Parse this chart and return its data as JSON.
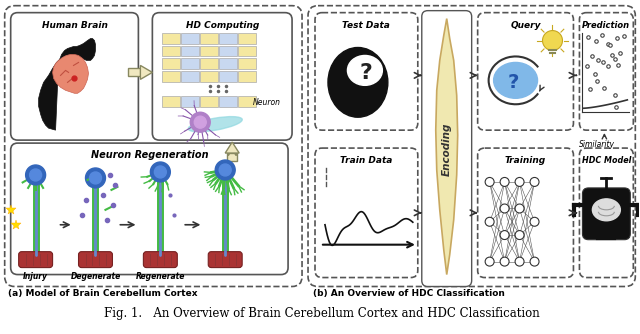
{
  "title": "Fig. 1.   An Overview of Brain Cerebellum Cortex and HDC Classification",
  "subtitle_a": "(a) Model of Brain Cerebellum Cortex",
  "subtitle_b": "(b) An Overview of HDC Classification",
  "bg_color": "#ffffff",
  "figsize": [
    6.4,
    3.34
  ],
  "dpi": 100
}
